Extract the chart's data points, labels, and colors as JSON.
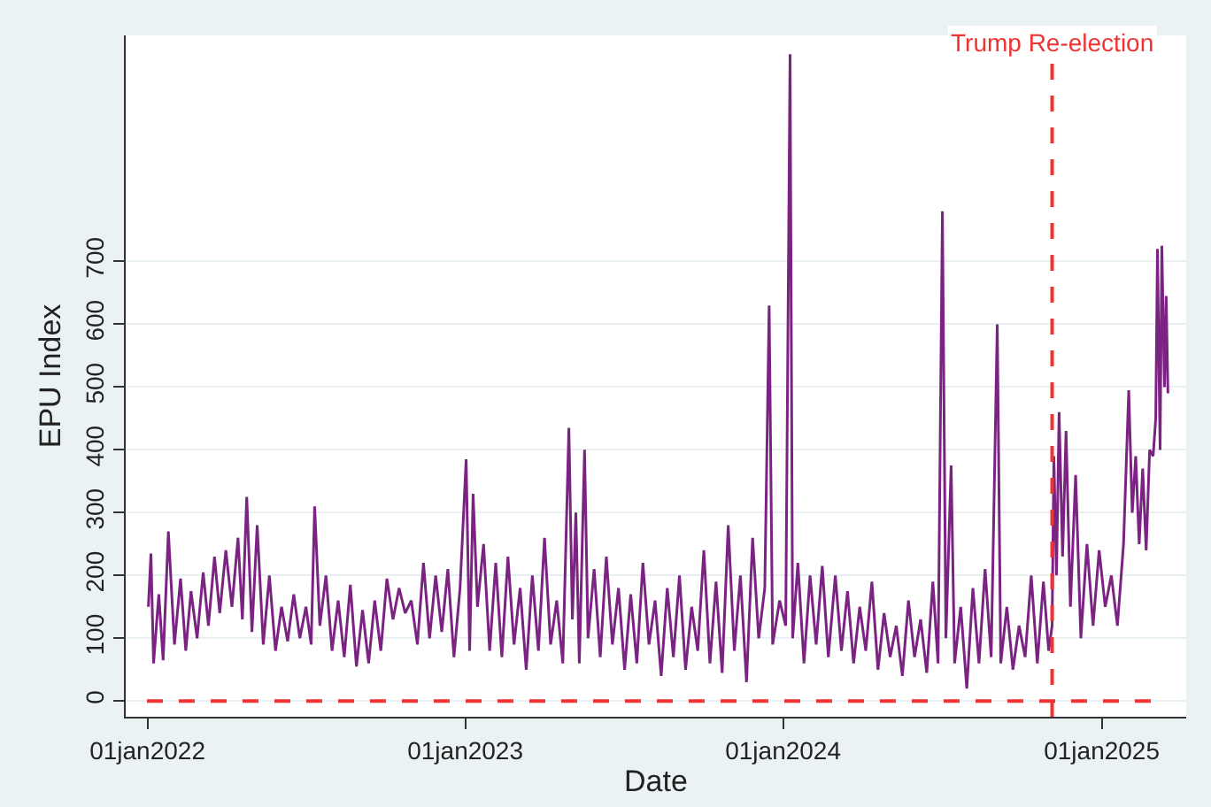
{
  "chart_data": {
    "type": "line",
    "xlabel": "Date",
    "ylabel": "EPU Index",
    "x": [
      "2022-01-02",
      "2022-01-05",
      "2022-01-08",
      "2022-01-14",
      "2022-01-19",
      "2022-01-25",
      "2022-02-01",
      "2022-02-08",
      "2022-02-14",
      "2022-02-20",
      "2022-02-27",
      "2022-03-06",
      "2022-03-12",
      "2022-03-19",
      "2022-03-25",
      "2022-04-01",
      "2022-04-08",
      "2022-04-15",
      "2022-04-20",
      "2022-04-25",
      "2022-05-01",
      "2022-05-07",
      "2022-05-14",
      "2022-05-21",
      "2022-05-28",
      "2022-06-04",
      "2022-06-11",
      "2022-06-18",
      "2022-06-25",
      "2022-07-02",
      "2022-07-08",
      "2022-07-12",
      "2022-07-18",
      "2022-07-25",
      "2022-08-01",
      "2022-08-08",
      "2022-08-15",
      "2022-08-22",
      "2022-08-29",
      "2022-09-05",
      "2022-09-12",
      "2022-09-19",
      "2022-09-26",
      "2022-10-03",
      "2022-10-10",
      "2022-10-17",
      "2022-10-24",
      "2022-10-31",
      "2022-11-07",
      "2022-11-14",
      "2022-11-21",
      "2022-11-28",
      "2022-12-05",
      "2022-12-12",
      "2022-12-19",
      "2022-12-26",
      "2023-01-02",
      "2023-01-06",
      "2023-01-10",
      "2023-01-15",
      "2023-01-22",
      "2023-01-29",
      "2023-02-05",
      "2023-02-12",
      "2023-02-19",
      "2023-02-26",
      "2023-03-05",
      "2023-03-12",
      "2023-03-19",
      "2023-03-26",
      "2023-04-02",
      "2023-04-09",
      "2023-04-16",
      "2023-04-23",
      "2023-04-30",
      "2023-05-04",
      "2023-05-08",
      "2023-05-12",
      "2023-05-18",
      "2023-05-22",
      "2023-05-29",
      "2023-06-05",
      "2023-06-12",
      "2023-06-19",
      "2023-06-26",
      "2023-07-03",
      "2023-07-10",
      "2023-07-17",
      "2023-07-24",
      "2023-07-31",
      "2023-08-07",
      "2023-08-14",
      "2023-08-21",
      "2023-08-28",
      "2023-09-04",
      "2023-09-11",
      "2023-09-18",
      "2023-09-25",
      "2023-10-02",
      "2023-10-09",
      "2023-10-16",
      "2023-10-23",
      "2023-10-30",
      "2023-11-06",
      "2023-11-13",
      "2023-11-20",
      "2023-11-27",
      "2023-12-04",
      "2023-12-11",
      "2023-12-16",
      "2023-12-20",
      "2023-12-28",
      "2024-01-04",
      "2024-01-09",
      "2024-01-12",
      "2024-01-18",
      "2024-01-25",
      "2024-02-01",
      "2024-02-08",
      "2024-02-15",
      "2024-02-22",
      "2024-03-01",
      "2024-03-08",
      "2024-03-15",
      "2024-03-22",
      "2024-03-29",
      "2024-04-05",
      "2024-04-12",
      "2024-04-19",
      "2024-04-26",
      "2024-05-03",
      "2024-05-10",
      "2024-05-17",
      "2024-05-24",
      "2024-05-31",
      "2024-06-07",
      "2024-06-14",
      "2024-06-21",
      "2024-06-27",
      "2024-07-02",
      "2024-07-06",
      "2024-07-12",
      "2024-07-16",
      "2024-07-23",
      "2024-07-30",
      "2024-08-06",
      "2024-08-13",
      "2024-08-20",
      "2024-08-27",
      "2024-09-03",
      "2024-09-07",
      "2024-09-14",
      "2024-09-21",
      "2024-09-28",
      "2024-10-05",
      "2024-10-12",
      "2024-10-19",
      "2024-10-26",
      "2024-11-01",
      "2024-11-05",
      "2024-11-07",
      "2024-11-10",
      "2024-11-13",
      "2024-11-17",
      "2024-11-21",
      "2024-11-26",
      "2024-12-02",
      "2024-12-08",
      "2024-12-15",
      "2024-12-22",
      "2024-12-29",
      "2025-01-05",
      "2025-01-12",
      "2025-01-19",
      "2025-01-26",
      "2025-02-01",
      "2025-02-05",
      "2025-02-09",
      "2025-02-13",
      "2025-02-17",
      "2025-02-21",
      "2025-02-25",
      "2025-03-01",
      "2025-03-04",
      "2025-03-06",
      "2025-03-09",
      "2025-03-11",
      "2025-03-14",
      "2025-03-16",
      "2025-03-18"
    ],
    "series": [
      {
        "color": "#7b2382",
        "values": [
          150,
          235,
          60,
          170,
          65,
          270,
          90,
          195,
          80,
          175,
          100,
          205,
          120,
          230,
          140,
          240,
          150,
          260,
          130,
          325,
          110,
          280,
          90,
          200,
          80,
          150,
          95,
          170,
          100,
          150,
          90,
          310,
          120,
          200,
          80,
          160,
          70,
          185,
          55,
          145,
          60,
          160,
          80,
          195,
          130,
          180,
          140,
          160,
          90,
          220,
          100,
          200,
          110,
          210,
          70,
          180,
          385,
          80,
          330,
          150,
          250,
          80,
          220,
          70,
          230,
          90,
          180,
          50,
          200,
          80,
          260,
          90,
          160,
          60,
          435,
          130,
          300,
          60,
          400,
          100,
          210,
          70,
          230,
          90,
          180,
          50,
          170,
          60,
          220,
          90,
          160,
          40,
          180,
          70,
          200,
          50,
          150,
          80,
          240,
          60,
          190,
          45,
          280,
          80,
          200,
          30,
          260,
          100,
          180,
          630,
          90,
          160,
          120,
          1030,
          100,
          220,
          60,
          200,
          90,
          215,
          70,
          200,
          80,
          175,
          60,
          150,
          80,
          190,
          50,
          140,
          70,
          120,
          40,
          160,
          70,
          130,
          45,
          190,
          60,
          780,
          100,
          375,
          60,
          150,
          20,
          180,
          60,
          210,
          70,
          600,
          60,
          150,
          50,
          120,
          70,
          200,
          60,
          190,
          80,
          120,
          390,
          200,
          460,
          230,
          430,
          150,
          360,
          100,
          250,
          120,
          240,
          150,
          200,
          120,
          250,
          495,
          300,
          390,
          250,
          370,
          240,
          400,
          390,
          450,
          720,
          400,
          725,
          500,
          645,
          490
        ]
      }
    ],
    "xlim": [
      "2021-12-07",
      "2025-04-08"
    ],
    "xticks": [
      {
        "value": "2022-01-01",
        "label": "01jan2022"
      },
      {
        "value": "2023-01-01",
        "label": "01jan2023"
      },
      {
        "value": "2024-01-01",
        "label": "01jan2024"
      },
      {
        "value": "2025-01-01",
        "label": "01jan2025"
      }
    ],
    "ylim": [
      -25,
      1060
    ],
    "yticks": [
      0,
      100,
      200,
      300,
      400,
      500,
      600,
      700
    ],
    "grid": "y",
    "legend": false,
    "marker": "none",
    "line_style": "solid",
    "ref_lines": [
      {
        "axis": "y",
        "value": 0,
        "label": null,
        "color": "#ee3333",
        "line_style": "dashed"
      },
      {
        "axis": "x",
        "value": "2024-11-05",
        "label": "Trump Re-election",
        "color": "#ee3333",
        "line_style": "dashed"
      }
    ]
  }
}
